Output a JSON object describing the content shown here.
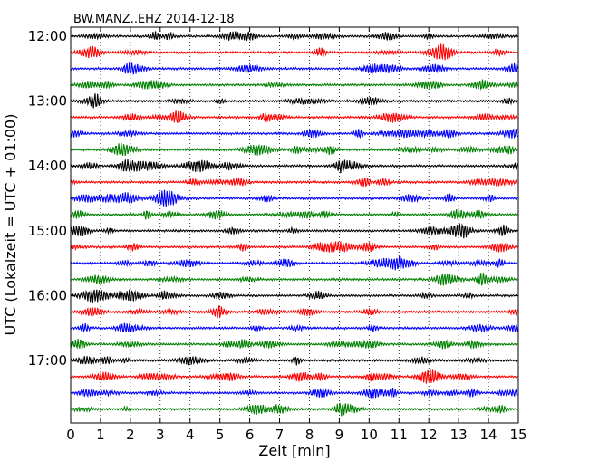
{
  "chart_data": {
    "type": "line",
    "title": "BW.MANZ..EHZ 2014-12-18",
    "xlabel": "Zeit  [min]",
    "ylabel": "UTC (Lokalzeit = UTC + 01:00)",
    "xlim": [
      0,
      15
    ],
    "x_ticks": [
      "0",
      "1",
      "2",
      "3",
      "4",
      "5",
      "6",
      "7",
      "8",
      "9",
      "10",
      "11",
      "12",
      "13",
      "14",
      "15"
    ],
    "y_tick_labels": [
      "12:00",
      "13:00",
      "14:00",
      "15:00",
      "16:00",
      "17:00"
    ],
    "trace_start_time": "12:00",
    "trace_interval_min": 15,
    "trace_count": 24,
    "grid_vertical_dotted": true,
    "trace_colors": [
      "#000000",
      "#ff0000",
      "#0000ff",
      "#008000"
    ]
  }
}
